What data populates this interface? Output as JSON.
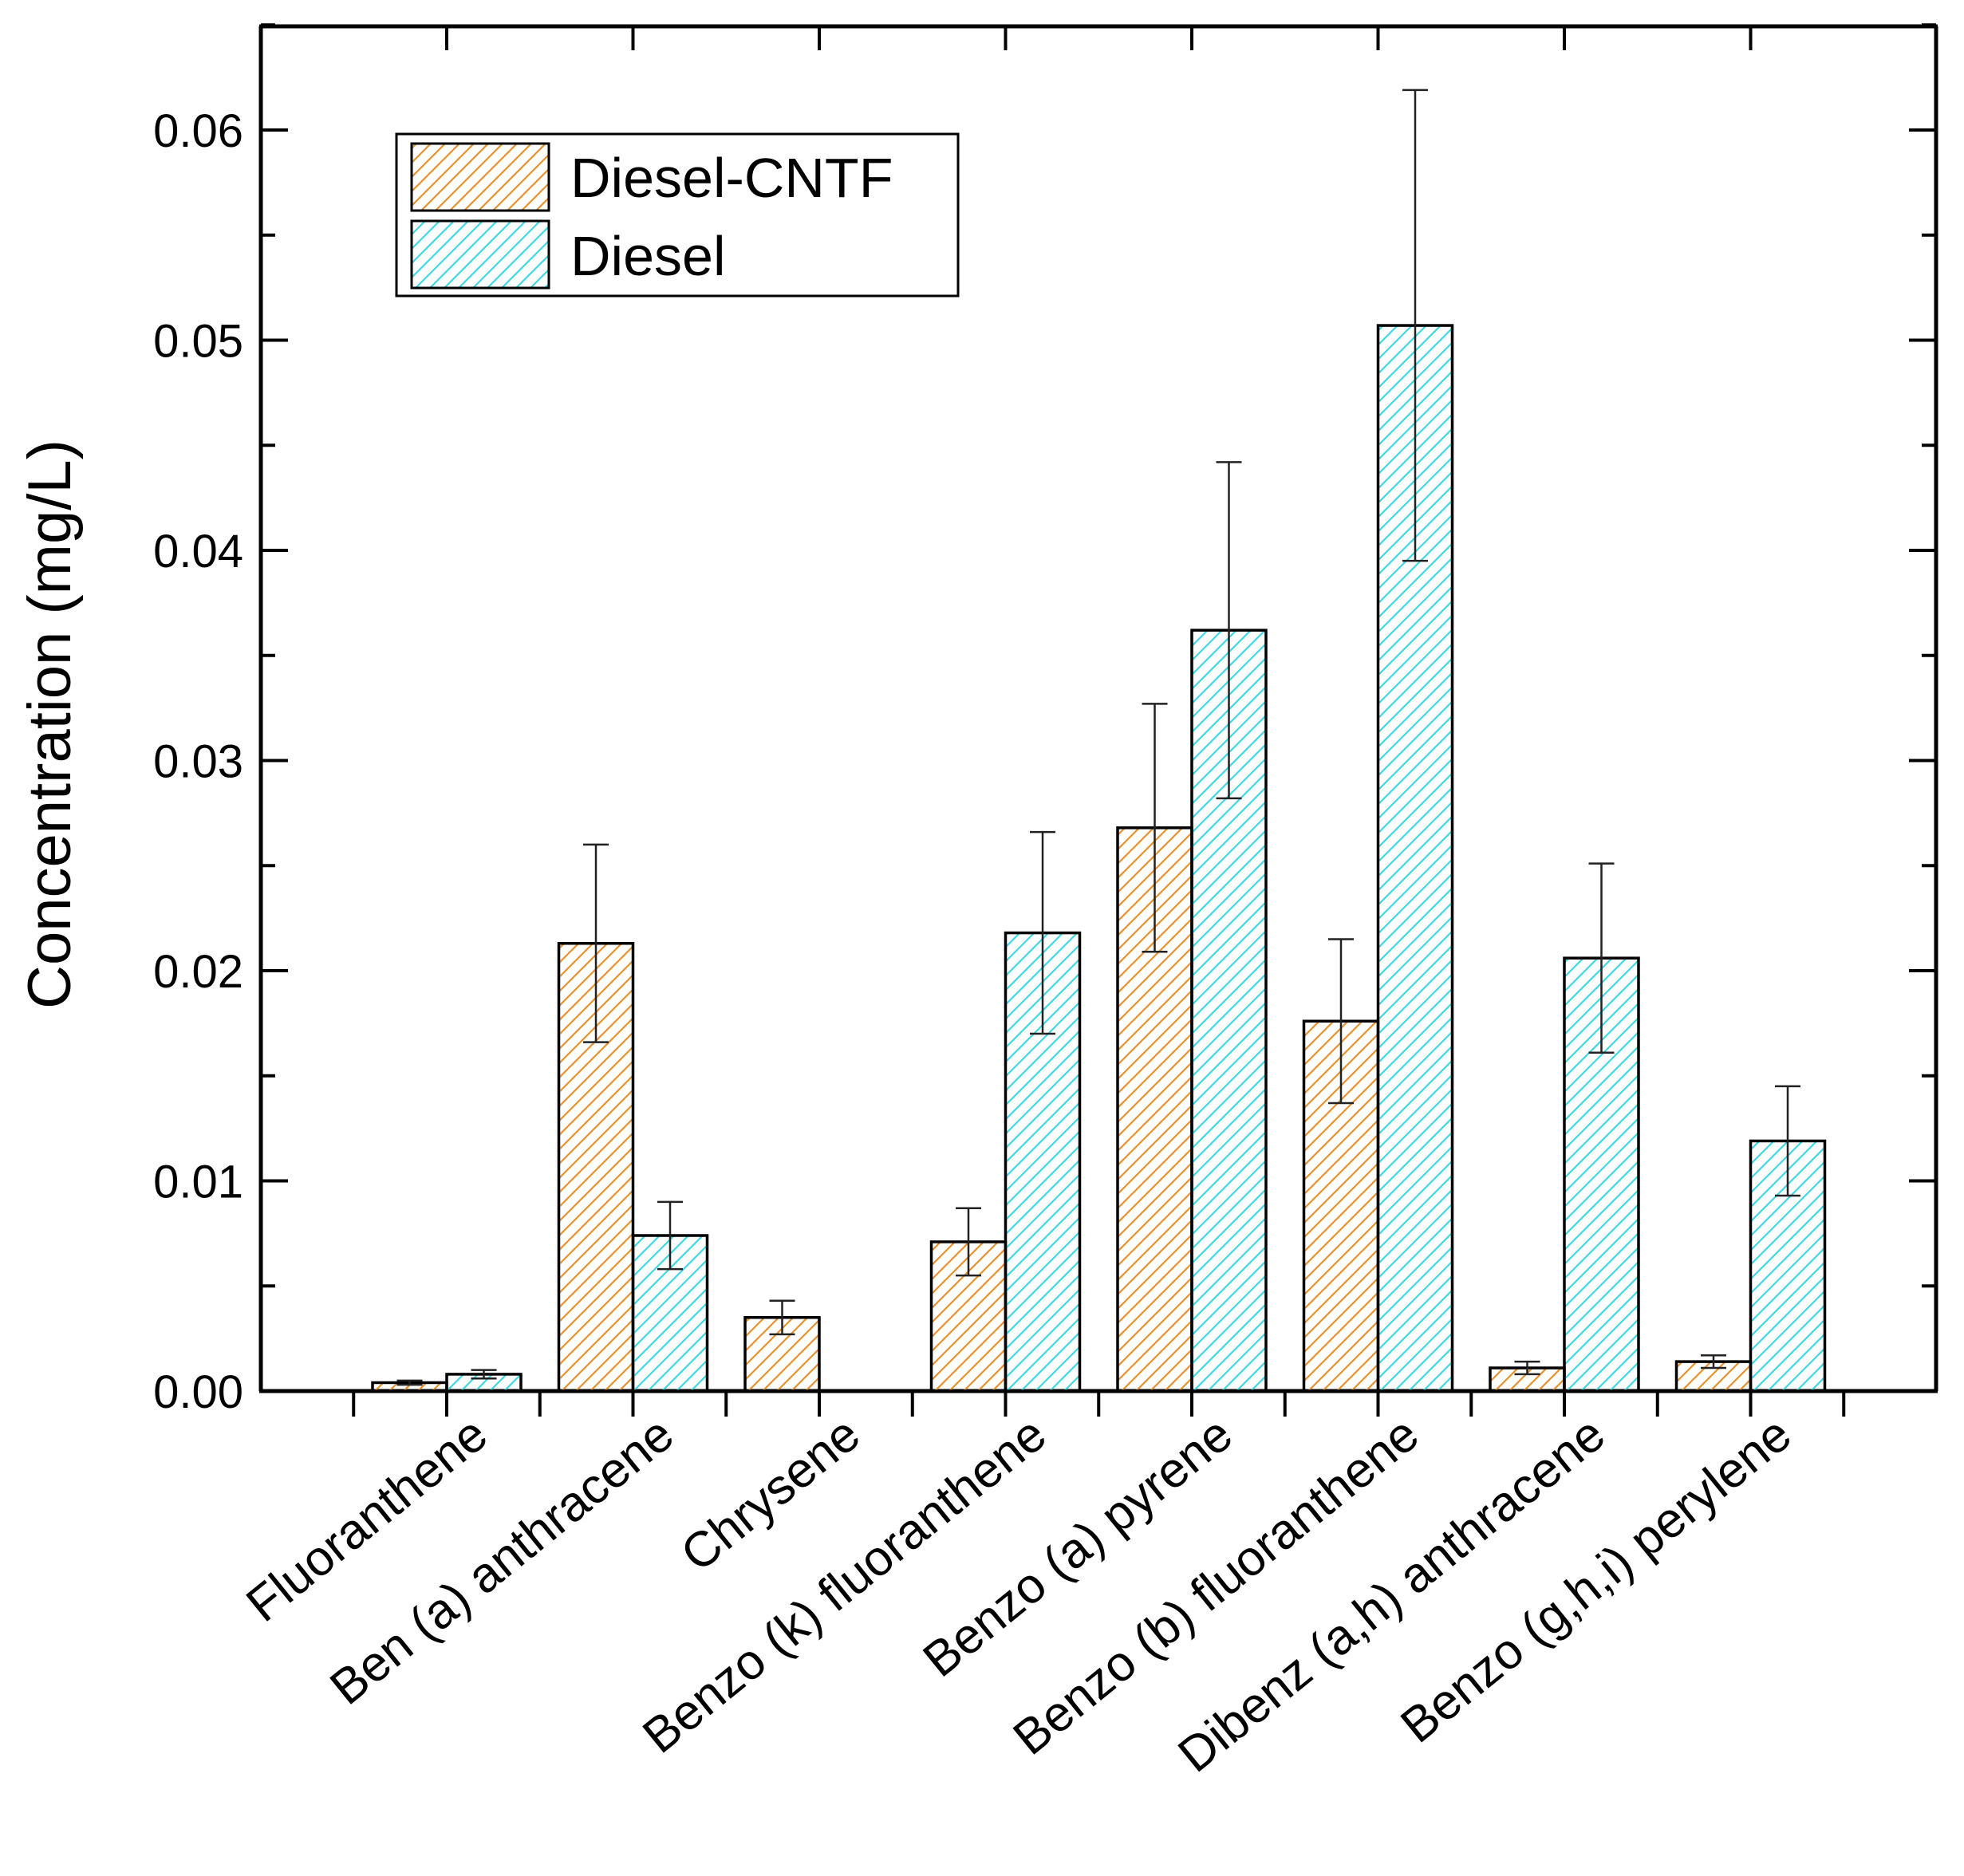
{
  "chart_data": {
    "type": "bar",
    "title": "",
    "xlabel": "",
    "ylabel": "Concentration (mg/L)",
    "ylim": [
      0,
      0.065
    ],
    "yticks": [
      "0.00",
      "0.01",
      "0.02",
      "0.03",
      "0.04",
      "0.05",
      "0.06"
    ],
    "legend_position": "top-left",
    "categories": [
      "Fluoranthene",
      "Ben (a) anthracene",
      "Chrysene",
      "Benzo (k) fluoranthene",
      "Benzo (a) pyrene",
      "Benzo (b) fluoranthene",
      "Dibenz (a,h) anthracene",
      "Benzo (g,h,i) perylene"
    ],
    "series": [
      {
        "name": "Diesel-CNTF",
        "color": "#E8912D",
        "values": [
          0.0004,
          0.0213,
          0.0035,
          0.0071,
          0.0268,
          0.0176,
          0.0011,
          0.0014
        ],
        "errors": [
          0.0001,
          0.0047,
          0.0008,
          0.0016,
          0.0059,
          0.0039,
          0.0003,
          0.0003
        ]
      },
      {
        "name": "Diesel",
        "color": "#3ED7E2",
        "values": [
          0.0008,
          0.0074,
          0,
          0.0218,
          0.0362,
          0.0507,
          0.0206,
          0.0119
        ],
        "errors": [
          0.0002,
          0.0016,
          0,
          0.0048,
          0.008,
          0.0112,
          0.0045,
          0.0026
        ]
      }
    ]
  }
}
